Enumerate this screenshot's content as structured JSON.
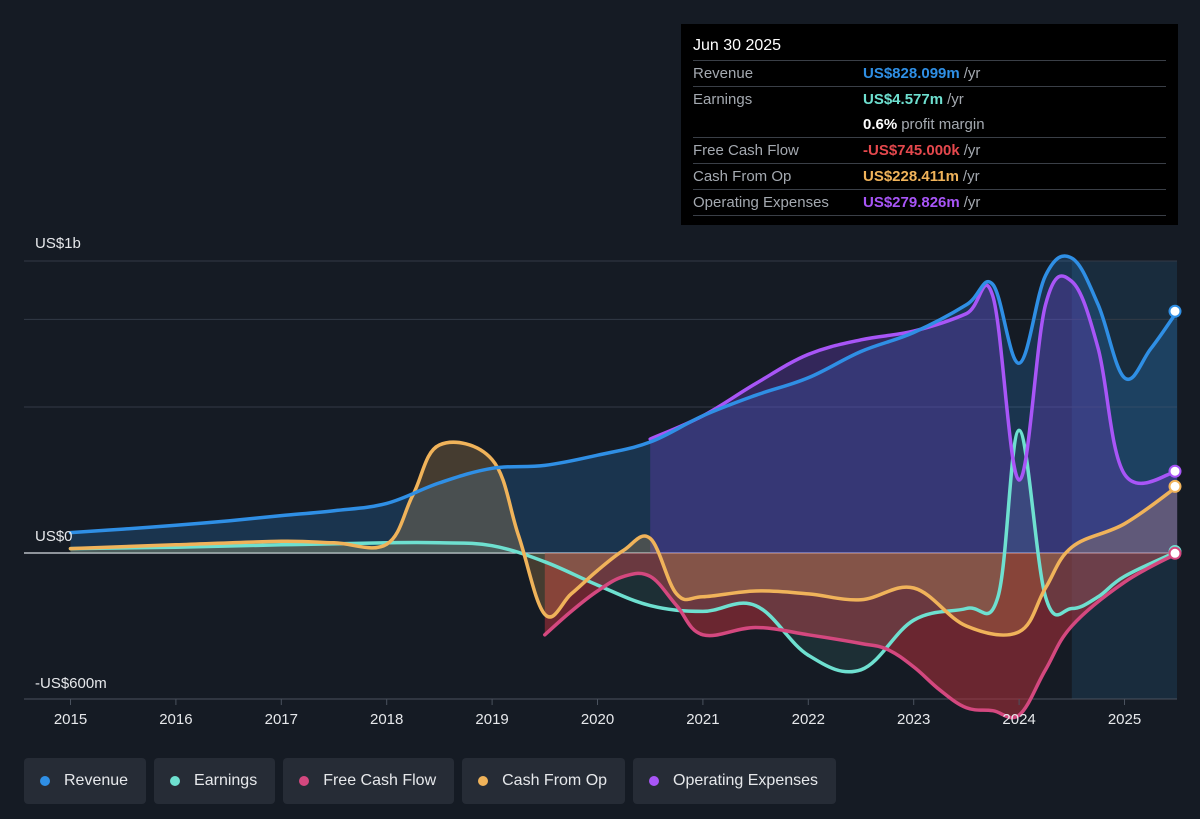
{
  "tooltip": {
    "date": "Jun 30 2025",
    "rows": [
      {
        "label": "Revenue",
        "value": "US$828.099m",
        "unit": "/yr",
        "color": "#2f8fe5"
      },
      {
        "label": "Earnings",
        "value": "US$4.577m",
        "unit": "/yr",
        "color": "#6ee0d0"
      },
      {
        "label": "",
        "value": "0.6%",
        "unit": "profit margin",
        "color": "#ffffff"
      },
      {
        "label": "Free Cash Flow",
        "value": "-US$745.000k",
        "unit": "/yr",
        "color": "#e5484d"
      },
      {
        "label": "Cash From Op",
        "value": "US$228.411m",
        "unit": "/yr",
        "color": "#f0b35a"
      },
      {
        "label": "Operating Expenses",
        "value": "US$279.826m",
        "unit": "/yr",
        "color": "#a855f7"
      }
    ]
  },
  "legend": [
    {
      "label": "Revenue",
      "color": "#2f8fe5"
    },
    {
      "label": "Earnings",
      "color": "#6ee0d0"
    },
    {
      "label": "Free Cash Flow",
      "color": "#d4487f"
    },
    {
      "label": "Cash From Op",
      "color": "#f0b35a"
    },
    {
      "label": "Operating Expenses",
      "color": "#a855f7"
    }
  ],
  "chart_data": {
    "type": "line",
    "y_top_label": "US$1b",
    "y_zero_label": "US$0",
    "y_bottom_label": "-US$600m",
    "ylim": [
      -600,
      1000
    ],
    "xlim": [
      2014.55,
      2025.5
    ],
    "x_ticks": [
      "2015",
      "2016",
      "2017",
      "2018",
      "2019",
      "2020",
      "2021",
      "2022",
      "2023",
      "2024",
      "2025"
    ],
    "forecast_shade_start": 2024.5,
    "series": [
      {
        "name": "Revenue",
        "color": "#2f8fe5",
        "x": [
          2015,
          2015.5,
          2016,
          2016.5,
          2017,
          2017.5,
          2018,
          2018.5,
          2019,
          2019.5,
          2020,
          2020.5,
          2021,
          2021.5,
          2022,
          2022.5,
          2023,
          2023.5,
          2023.75,
          2024,
          2024.25,
          2024.5,
          2024.75,
          2025,
          2025.25,
          2025.5
        ],
        "values": [
          70,
          82,
          95,
          110,
          128,
          145,
          170,
          240,
          290,
          300,
          335,
          380,
          470,
          540,
          600,
          690,
          755,
          850,
          920,
          650,
          950,
          1010,
          850,
          600,
          700,
          828
        ]
      },
      {
        "name": "Earnings",
        "color": "#6ee0d0",
        "x": [
          2015,
          2016,
          2017,
          2018,
          2018.5,
          2019,
          2019.5,
          2020,
          2020.5,
          2021,
          2021.5,
          2022,
          2022.5,
          2023,
          2023.5,
          2023.8,
          2024,
          2024.25,
          2024.5,
          2024.75,
          2025,
          2025.5
        ],
        "values": [
          15,
          20,
          28,
          35,
          35,
          25,
          -30,
          -110,
          -180,
          -200,
          -180,
          -350,
          -400,
          -230,
          -190,
          -150,
          420,
          -150,
          -190,
          -150,
          -80,
          5
        ]
      },
      {
        "name": "Free Cash Flow",
        "color": "#d4487f",
        "x": [
          2019.5,
          2019.75,
          2020,
          2020.25,
          2020.5,
          2020.75,
          2021,
          2021.5,
          2022,
          2022.5,
          2022.75,
          2023,
          2023.25,
          2023.5,
          2023.75,
          2024,
          2024.25,
          2024.5,
          2025,
          2025.5
        ],
        "values": [
          -280,
          -200,
          -130,
          -80,
          -80,
          -180,
          -280,
          -255,
          -280,
          -310,
          -330,
          -390,
          -470,
          -530,
          -540,
          -555,
          -400,
          -250,
          -100,
          -1
        ]
      },
      {
        "name": "Cash From Op",
        "color": "#f0b35a",
        "x": [
          2015,
          2016,
          2017,
          2017.5,
          2018,
          2018.25,
          2018.5,
          2019,
          2019.25,
          2019.5,
          2019.75,
          2020,
          2020.25,
          2020.5,
          2020.75,
          2021,
          2021.5,
          2022,
          2022.5,
          2023,
          2023.5,
          2024,
          2024.25,
          2024.5,
          2025,
          2025.5
        ],
        "values": [
          15,
          28,
          40,
          35,
          30,
          200,
          370,
          320,
          60,
          -210,
          -140,
          -60,
          10,
          50,
          -140,
          -150,
          -130,
          -140,
          -160,
          -120,
          -250,
          -270,
          -120,
          20,
          100,
          228
        ]
      },
      {
        "name": "Operating Expenses",
        "color": "#a855f7",
        "x": [
          2020.5,
          2021,
          2021.5,
          2022,
          2022.5,
          2023,
          2023.5,
          2023.75,
          2024,
          2024.25,
          2024.5,
          2024.75,
          2025,
          2025.5
        ],
        "values": [
          390,
          470,
          580,
          680,
          730,
          760,
          820,
          880,
          250,
          850,
          930,
          700,
          270,
          280
        ]
      }
    ]
  }
}
